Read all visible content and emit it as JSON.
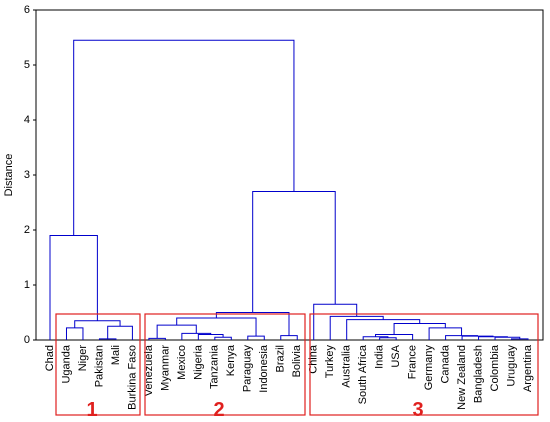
{
  "chart_data": {
    "type": "dendrogram",
    "ylabel": "Distance",
    "ylim": [
      0,
      6
    ],
    "yticks": [
      0,
      1,
      2,
      3,
      4,
      5,
      6
    ],
    "color": "#0000cc",
    "categories": [
      "Chad",
      "Uganda",
      "Niger",
      "Pakistan",
      "Mali",
      "Burkina Faso",
      "Venezuela",
      "Myanmar",
      "Mexico",
      "Nigeria",
      "Tanzania",
      "Kenya",
      "Paraguay",
      "Indonesia",
      "Brazil",
      "Bolivia",
      "China",
      "Turkey",
      "Australia",
      "South Africa",
      "India",
      "USA",
      "France",
      "Germany",
      "Canada",
      "New Zealand",
      "Bangladesh",
      "Colombia",
      "Uruguay",
      "Argentina"
    ],
    "merges": [
      {
        "left": 3,
        "right": 4,
        "height": 0.02
      },
      {
        "left": 1,
        "right": 2,
        "height": 0.22
      },
      {
        "left": 30,
        "right": 5,
        "height": 0.25
      },
      {
        "left": 31,
        "right": 32,
        "height": 0.35
      },
      {
        "left": 0,
        "right": 33,
        "height": 1.9
      },
      {
        "left": 6,
        "right": 7,
        "height": 0.03
      },
      {
        "left": 10,
        "right": 11,
        "height": 0.05
      },
      {
        "left": 9,
        "right": 36,
        "height": 0.1
      },
      {
        "left": 8,
        "right": 37,
        "height": 0.12
      },
      {
        "left": 35,
        "right": 38,
        "height": 0.27
      },
      {
        "left": 12,
        "right": 13,
        "height": 0.07
      },
      {
        "left": 39,
        "right": 40,
        "height": 0.4
      },
      {
        "left": 14,
        "right": 15,
        "height": 0.08
      },
      {
        "left": 41,
        "right": 42,
        "height": 0.5
      },
      {
        "left": 20,
        "right": 21,
        "height": 0.04
      },
      {
        "left": 19,
        "right": 44,
        "height": 0.06
      },
      {
        "left": 45,
        "right": 22,
        "height": 0.1
      },
      {
        "left": 28,
        "right": 29,
        "height": 0.02
      },
      {
        "left": 27,
        "right": 47,
        "height": 0.05
      },
      {
        "left": 26,
        "right": 48,
        "height": 0.06
      },
      {
        "left": 25,
        "right": 49,
        "height": 0.07
      },
      {
        "left": 24,
        "right": 50,
        "height": 0.08
      },
      {
        "left": 23,
        "right": 51,
        "height": 0.22
      },
      {
        "left": 46,
        "right": 52,
        "height": 0.3
      },
      {
        "left": 18,
        "right": 53,
        "height": 0.37
      },
      {
        "left": 17,
        "right": 54,
        "height": 0.43
      },
      {
        "left": 16,
        "right": 55,
        "height": 0.65
      },
      {
        "left": 43,
        "right": 56,
        "height": 2.7
      },
      {
        "left": 34,
        "right": 57,
        "height": 5.45
      }
    ],
    "clusters": [
      {
        "label": "1"
      },
      {
        "label": "2"
      },
      {
        "label": "3"
      }
    ]
  }
}
